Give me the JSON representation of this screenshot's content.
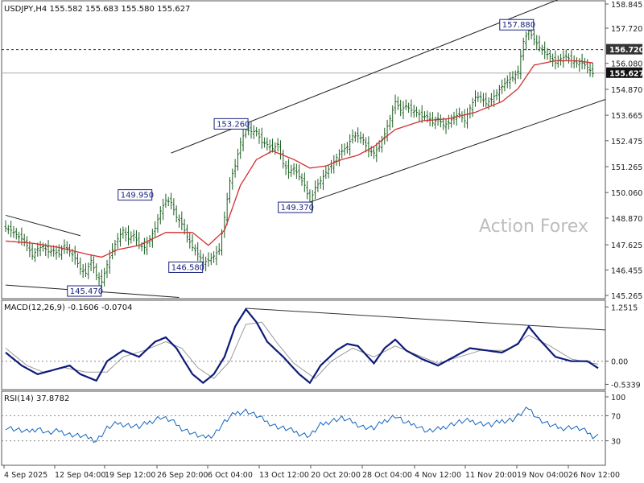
{
  "chart_data": [
    {
      "type": "candlestick",
      "title": "USDJPY,H4  155.582 155.683 155.580 155.627",
      "symbol": "USDJPY",
      "timeframe": "H4",
      "ohlc_readout": [
        155.582,
        155.683,
        155.58,
        155.627
      ],
      "ylim": [
        145.265,
        158.845
      ],
      "y_ticks": [
        "158.845",
        "157.720",
        "156.080",
        "154.870",
        "153.665",
        "152.475",
        "151.265",
        "150.060",
        "148.870",
        "147.625",
        "146.455",
        "145.265"
      ],
      "x_ticks": [
        "4 Sep 2025",
        "12 Sep 04:00",
        "19 Sep 12:00",
        "26 Sep 20:00",
        "6 Oct 04:00",
        "13 Oct 12:00",
        "20 Oct 20:00",
        "28 Oct 04:00",
        "4 Nov 12:00",
        "11 Nov 20:00",
        "19 Nov 04:00",
        "26 Nov 12:00"
      ],
      "close_path": [
        [
          0,
          148.4
        ],
        [
          2,
          148.3
        ],
        [
          4,
          148.1
        ],
        [
          6,
          147.9
        ],
        [
          8,
          147.6
        ],
        [
          10,
          147.1
        ],
        [
          12,
          147.45
        ],
        [
          14,
          147.55
        ],
        [
          16,
          147.3
        ],
        [
          18,
          147.35
        ],
        [
          20,
          147.2
        ],
        [
          22,
          147.6
        ],
        [
          24,
          147.3
        ],
        [
          26,
          147.0
        ],
        [
          28,
          146.5
        ],
        [
          30,
          146.3
        ],
        [
          32,
          146.9
        ],
        [
          34,
          146.2
        ],
        [
          36,
          145.9
        ],
        [
          38,
          146.7
        ],
        [
          40,
          147.4
        ],
        [
          42,
          147.9
        ],
        [
          44,
          148.3
        ],
        [
          46,
          147.9
        ],
        [
          48,
          148.1
        ],
        [
          50,
          147.6
        ],
        [
          52,
          147.5
        ],
        [
          54,
          147.9
        ],
        [
          56,
          148.4
        ],
        [
          58,
          149.2
        ],
        [
          60,
          149.7
        ],
        [
          62,
          149.6
        ],
        [
          64,
          148.9
        ],
        [
          66,
          148.6
        ],
        [
          68,
          148.0
        ],
        [
          70,
          147.5
        ],
        [
          72,
          147.2
        ],
        [
          74,
          146.8
        ],
        [
          76,
          146.9
        ],
        [
          78,
          147.1
        ],
        [
          80,
          147.4
        ],
        [
          82,
          148.9
        ],
        [
          84,
          150.6
        ],
        [
          86,
          151.3
        ],
        [
          88,
          152.4
        ],
        [
          90,
          153.0
        ],
        [
          92,
          152.9
        ],
        [
          94,
          152.9
        ],
        [
          96,
          152.4
        ],
        [
          98,
          152.3
        ],
        [
          100,
          152.1
        ],
        [
          102,
          152.3
        ],
        [
          104,
          151.4
        ],
        [
          106,
          151.0
        ],
        [
          108,
          151.2
        ],
        [
          110,
          150.8
        ],
        [
          112,
          150.4
        ],
        [
          114,
          149.6
        ],
        [
          116,
          150.3
        ],
        [
          118,
          150.6
        ],
        [
          120,
          151.0
        ],
        [
          122,
          151.3
        ],
        [
          124,
          151.7
        ],
        [
          126,
          152.0
        ],
        [
          128,
          152.2
        ],
        [
          130,
          152.7
        ],
        [
          132,
          152.7
        ],
        [
          134,
          152.5
        ],
        [
          136,
          152.0
        ],
        [
          138,
          151.9
        ],
        [
          140,
          152.2
        ],
        [
          142,
          152.8
        ],
        [
          144,
          153.5
        ],
        [
          146,
          154.3
        ],
        [
          148,
          153.9
        ],
        [
          150,
          154.1
        ],
        [
          152,
          153.9
        ],
        [
          154,
          153.8
        ],
        [
          156,
          153.6
        ],
        [
          158,
          153.6
        ],
        [
          160,
          153.3
        ],
        [
          162,
          153.5
        ],
        [
          164,
          153.2
        ],
        [
          166,
          153.3
        ],
        [
          168,
          153.6
        ],
        [
          170,
          153.7
        ],
        [
          172,
          153.4
        ],
        [
          174,
          154.0
        ],
        [
          176,
          154.5
        ],
        [
          178,
          154.5
        ],
        [
          180,
          154.2
        ],
        [
          182,
          154.4
        ],
        [
          184,
          154.7
        ],
        [
          186,
          155.0
        ],
        [
          188,
          155.3
        ],
        [
          190,
          155.4
        ],
        [
          192,
          155.7
        ],
        [
          194,
          157.1
        ],
        [
          196,
          157.6
        ],
        [
          198,
          157.2
        ],
        [
          200,
          156.8
        ],
        [
          202,
          156.6
        ],
        [
          204,
          156.4
        ],
        [
          206,
          156.1
        ],
        [
          208,
          156.3
        ],
        [
          210,
          156.4
        ],
        [
          212,
          156.2
        ],
        [
          214,
          156.1
        ],
        [
          216,
          156.1
        ],
        [
          218,
          155.9
        ],
        [
          220,
          155.6
        ]
      ],
      "moving_average": [
        [
          0,
          147.8
        ],
        [
          10,
          147.7
        ],
        [
          20,
          147.5
        ],
        [
          30,
          147.2
        ],
        [
          36,
          147.05
        ],
        [
          42,
          147.4
        ],
        [
          50,
          147.6
        ],
        [
          60,
          148.2
        ],
        [
          70,
          148.2
        ],
        [
          76,
          147.6
        ],
        [
          82,
          148.3
        ],
        [
          88,
          150.4
        ],
        [
          94,
          151.6
        ],
        [
          100,
          152.0
        ],
        [
          108,
          151.6
        ],
        [
          114,
          151.2
        ],
        [
          120,
          151.3
        ],
        [
          126,
          151.6
        ],
        [
          132,
          151.8
        ],
        [
          138,
          152.2
        ],
        [
          146,
          153.0
        ],
        [
          156,
          153.4
        ],
        [
          166,
          153.5
        ],
        [
          176,
          153.8
        ],
        [
          186,
          154.3
        ],
        [
          192,
          154.9
        ],
        [
          198,
          156.0
        ],
        [
          206,
          156.2
        ],
        [
          214,
          156.2
        ],
        [
          220,
          156.1
        ]
      ],
      "annotations": [
        {
          "text": "157.880",
          "value": 157.88,
          "bar": 196
        },
        {
          "text": "153.260",
          "value": 153.26,
          "bar": 89
        },
        {
          "text": "149.950",
          "value": 149.95,
          "bar": 53
        },
        {
          "text": "149.370",
          "value": 149.37,
          "bar": 113
        },
        {
          "text": "146.580",
          "value": 146.58,
          "bar": 72
        },
        {
          "text": "145.470",
          "value": 145.47,
          "bar": 34
        }
      ],
      "current_price": {
        "label": "155.627",
        "value": 155.627
      },
      "resistance_level": {
        "label": "156.720",
        "value": 156.72
      },
      "trend_lines": [
        {
          "start_bar": 62,
          "start_value": 151.9,
          "end_bar": 210,
          "end_value": 159.2
        },
        {
          "start_bar": 109,
          "start_value": 149.4,
          "end_bar": 225,
          "end_value": 154.4
        },
        {
          "start_bar": 0,
          "start_value": 149.0,
          "end_bar": 28,
          "end_value": 148.05
        },
        {
          "start_bar": 0,
          "start_value": 145.75,
          "end_bar": 65,
          "end_value": 145.17
        }
      ],
      "watermark": "Action Forex",
      "colors": {
        "up": "#1b5e20",
        "down": "#1b5e20",
        "moving_average": "#d32f2f",
        "trend_line": "#222222",
        "label_border": "#1a237e"
      }
    },
    {
      "type": "line",
      "title": "MACD(12,26,9) -0.1606 -0.0704",
      "ylim": [
        -0.6,
        1.35
      ],
      "y_ticks": [
        "1.2515",
        "0.00",
        "-0.5339"
      ],
      "series": [
        {
          "values": [
            [
              0,
              0.2
            ],
            [
              6,
              -0.1
            ],
            [
              12,
              -0.3
            ],
            [
              18,
              -0.2
            ],
            [
              24,
              -0.1
            ],
            [
              28,
              -0.3
            ],
            [
              34,
              -0.45
            ],
            [
              38,
              0.0
            ],
            [
              44,
              0.25
            ],
            [
              50,
              0.1
            ],
            [
              56,
              0.45
            ],
            [
              60,
              0.55
            ],
            [
              64,
              0.3
            ],
            [
              70,
              -0.3
            ],
            [
              74,
              -0.5
            ],
            [
              78,
              -0.3
            ],
            [
              82,
              0.1
            ],
            [
              86,
              0.8
            ],
            [
              90,
              1.2
            ],
            [
              94,
              0.9
            ],
            [
              98,
              0.45
            ],
            [
              104,
              0.1
            ],
            [
              110,
              -0.3
            ],
            [
              114,
              -0.5
            ],
            [
              118,
              -0.1
            ],
            [
              124,
              0.25
            ],
            [
              128,
              0.4
            ],
            [
              132,
              0.35
            ],
            [
              138,
              -0.05
            ],
            [
              142,
              0.3
            ],
            [
              146,
              0.5
            ],
            [
              150,
              0.25
            ],
            [
              156,
              0.05
            ],
            [
              162,
              -0.1
            ],
            [
              168,
              0.1
            ],
            [
              174,
              0.3
            ],
            [
              180,
              0.25
            ],
            [
              186,
              0.2
            ],
            [
              192,
              0.4
            ],
            [
              196,
              0.8
            ],
            [
              200,
              0.5
            ],
            [
              206,
              0.1
            ],
            [
              212,
              0.0
            ],
            [
              218,
              0.0
            ],
            [
              222,
              -0.16
            ]
          ]
        },
        {
          "values": [
            [
              0,
              0.3
            ],
            [
              8,
              -0.1
            ],
            [
              14,
              -0.25
            ],
            [
              22,
              -0.15
            ],
            [
              30,
              -0.25
            ],
            [
              38,
              -0.25
            ],
            [
              44,
              0.1
            ],
            [
              52,
              0.25
            ],
            [
              60,
              0.45
            ],
            [
              66,
              0.3
            ],
            [
              72,
              -0.15
            ],
            [
              78,
              -0.4
            ],
            [
              84,
              0.0
            ],
            [
              90,
              0.85
            ],
            [
              96,
              0.9
            ],
            [
              102,
              0.4
            ],
            [
              108,
              -0.05
            ],
            [
              116,
              -0.4
            ],
            [
              122,
              0.0
            ],
            [
              130,
              0.3
            ],
            [
              138,
              0.1
            ],
            [
              146,
              0.35
            ],
            [
              154,
              0.15
            ],
            [
              162,
              -0.05
            ],
            [
              170,
              0.1
            ],
            [
              178,
              0.25
            ],
            [
              188,
              0.25
            ],
            [
              196,
              0.6
            ],
            [
              204,
              0.35
            ],
            [
              212,
              0.05
            ],
            [
              222,
              -0.07
            ]
          ]
        }
      ],
      "colors": {
        "macd": "#0d1b7a",
        "signal": "#9a9a9a",
        "zero_line": "#888888"
      }
    },
    {
      "type": "line",
      "title": "RSI(14) 37.8782",
      "ylim": [
        0,
        100
      ],
      "y_ticks": [
        "100",
        "70",
        "30",
        "0"
      ],
      "series": [
        {
          "values": [
            [
              0,
              52
            ],
            [
              4,
              48
            ],
            [
              8,
              44
            ],
            [
              12,
              50
            ],
            [
              16,
              42
            ],
            [
              20,
              46
            ],
            [
              24,
              40
            ],
            [
              28,
              38
            ],
            [
              32,
              34
            ],
            [
              34,
              30
            ],
            [
              38,
              50
            ],
            [
              42,
              58
            ],
            [
              46,
              55
            ],
            [
              50,
              52
            ],
            [
              54,
              60
            ],
            [
              58,
              68
            ],
            [
              62,
              62
            ],
            [
              66,
              50
            ],
            [
              70,
              42
            ],
            [
              74,
              35
            ],
            [
              78,
              40
            ],
            [
              82,
              60
            ],
            [
              86,
              74
            ],
            [
              90,
              78
            ],
            [
              94,
              70
            ],
            [
              98,
              60
            ],
            [
              102,
              52
            ],
            [
              106,
              48
            ],
            [
              110,
              42
            ],
            [
              114,
              38
            ],
            [
              118,
              55
            ],
            [
              122,
              62
            ],
            [
              126,
              66
            ],
            [
              130,
              60
            ],
            [
              134,
              52
            ],
            [
              138,
              50
            ],
            [
              142,
              62
            ],
            [
              146,
              70
            ],
            [
              150,
              58
            ],
            [
              154,
              55
            ],
            [
              158,
              45
            ],
            [
              162,
              48
            ],
            [
              166,
              55
            ],
            [
              170,
              60
            ],
            [
              174,
              62
            ],
            [
              178,
              58
            ],
            [
              182,
              55
            ],
            [
              186,
              62
            ],
            [
              190,
              64
            ],
            [
              194,
              76
            ],
            [
              196,
              82
            ],
            [
              200,
              64
            ],
            [
              204,
              55
            ],
            [
              208,
              50
            ],
            [
              212,
              52
            ],
            [
              216,
              48
            ],
            [
              220,
              38
            ]
          ]
        }
      ],
      "colors": {
        "rsi": "#1565c0",
        "levels": "#888888"
      }
    }
  ]
}
